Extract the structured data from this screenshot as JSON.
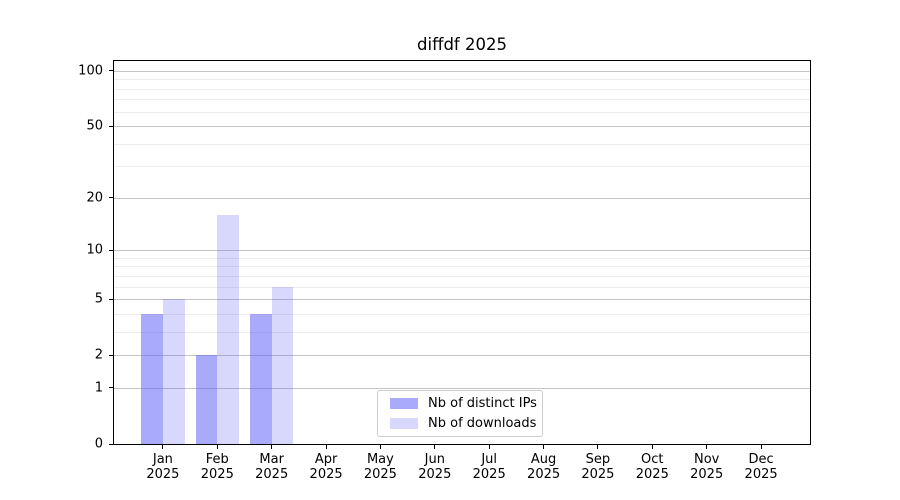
{
  "chart_data": {
    "type": "bar",
    "title": "diffdf 2025",
    "categories": [
      {
        "month": "Jan",
        "year": "2025"
      },
      {
        "month": "Feb",
        "year": "2025"
      },
      {
        "month": "Mar",
        "year": "2025"
      },
      {
        "month": "Apr",
        "year": "2025"
      },
      {
        "month": "May",
        "year": "2025"
      },
      {
        "month": "Jun",
        "year": "2025"
      },
      {
        "month": "Jul",
        "year": "2025"
      },
      {
        "month": "Aug",
        "year": "2025"
      },
      {
        "month": "Sep",
        "year": "2025"
      },
      {
        "month": "Oct",
        "year": "2025"
      },
      {
        "month": "Nov",
        "year": "2025"
      },
      {
        "month": "Dec",
        "year": "2025"
      }
    ],
    "series": [
      {
        "name": "Nb of distinct IPs",
        "color": "rgba(101,101,246,0.55)",
        "values": [
          4,
          2,
          4,
          0,
          0,
          0,
          0,
          0,
          0,
          0,
          0,
          0
        ]
      },
      {
        "name": "Nb of downloads",
        "color": "rgba(101,101,246,0.25)",
        "values": [
          5,
          16,
          6,
          0,
          0,
          0,
          0,
          0,
          0,
          0,
          0,
          0
        ]
      }
    ],
    "yscale": "log1p",
    "ylim": [
      0,
      113
    ],
    "xlim": [
      -0.9,
      11.9
    ],
    "bar_width": 0.4,
    "y_major_ticks": [
      0,
      1,
      2,
      5,
      10,
      20,
      50,
      100
    ],
    "y_minor_ticks": [
      3,
      4,
      6,
      7,
      8,
      9,
      30,
      40,
      60,
      70,
      80,
      90
    ],
    "grid": true,
    "legend_position": "lower center",
    "colors": {
      "major_grid": "#c4c4c4",
      "minor_grid": "#ececec",
      "spine": "#000000",
      "legend_border": "#cccccc"
    }
  }
}
